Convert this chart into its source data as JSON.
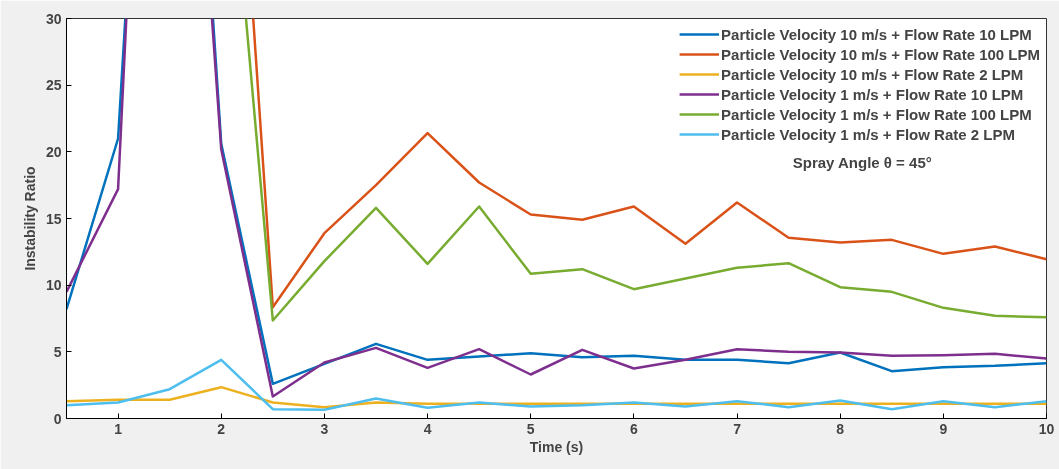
{
  "chart_data": {
    "type": "line",
    "xlabel": "Time (s)",
    "ylabel": "Instability Ratio",
    "xlim": [
      0.5,
      10
    ],
    "ylim": [
      0,
      30
    ],
    "xticks": [
      1,
      2,
      3,
      4,
      5,
      6,
      7,
      8,
      9,
      10
    ],
    "yticks": [
      0,
      5,
      10,
      15,
      20,
      25,
      30
    ],
    "grid": false,
    "legend": "top right",
    "line_style": "solid",
    "marker": "none",
    "annotations": [
      "Spray Angle θ = 45°"
    ],
    "series": [
      {
        "name": "Particle Velocity 10 m/s + Flow Rate 10 LPM",
        "color": "#0072bd",
        "x": [
          0.5,
          1,
          1.07,
          1.5,
          1.92,
          2,
          2.5,
          3,
          3.5,
          4,
          4.5,
          5,
          5.5,
          6,
          6.5,
          7,
          7.5,
          8,
          8.5,
          9,
          9.5,
          10
        ],
        "values": [
          8.2,
          21.0,
          30,
          null,
          30,
          20.6,
          2.6,
          4.1,
          5.6,
          4.4,
          4.65,
          4.9,
          4.6,
          4.7,
          4.4,
          4.4,
          4.15,
          4.95,
          3.55,
          3.85,
          3.95,
          4.15
        ]
      },
      {
        "name": "Particle Velocity 10 m/s + Flow Rate 100 LPM",
        "color": "#d95319",
        "x": [
          2.31,
          2.5,
          3,
          3.5,
          4,
          4.5,
          5,
          5.5,
          6,
          6.5,
          7,
          7.5,
          8,
          8.5,
          9,
          9.5,
          10
        ],
        "values": [
          30,
          8.35,
          13.9,
          17.5,
          21.4,
          17.7,
          15.3,
          14.9,
          15.9,
          13.1,
          16.2,
          13.55,
          13.2,
          13.4,
          12.35,
          12.9,
          11.95
        ]
      },
      {
        "name": "Particle Velocity 10 m/s + Flow Rate 2 LPM",
        "color": "#edb120",
        "x": [
          0.5,
          1,
          1.5,
          2,
          2.5,
          3,
          3.5,
          4,
          4.5,
          5,
          5.5,
          6,
          6.5,
          7,
          7.5,
          8,
          8.5,
          9,
          9.5,
          10
        ],
        "values": [
          1.3,
          1.4,
          1.4,
          2.35,
          1.2,
          0.85,
          1.2,
          1.1,
          1.1,
          1.1,
          1.1,
          1.1,
          1.1,
          1.1,
          1.1,
          1.1,
          1.1,
          1.1,
          1.1,
          1.1
        ]
      },
      {
        "name": "Particle Velocity 1 m/s + Flow Rate 10 LPM",
        "color": "#7e2f8e",
        "x": [
          0.5,
          1,
          1.08,
          1.5,
          1.91,
          2,
          2.5,
          3,
          3.5,
          4,
          4.5,
          5,
          5.5,
          6,
          6.5,
          7,
          7.5,
          8,
          8.5,
          9,
          9.5,
          10
        ],
        "values": [
          9.5,
          17.2,
          30,
          null,
          30,
          20.2,
          1.65,
          4.2,
          5.3,
          3.8,
          5.2,
          3.3,
          5.15,
          3.75,
          4.4,
          5.2,
          5.0,
          4.95,
          4.7,
          4.75,
          4.85,
          4.5
        ]
      },
      {
        "name": "Particle Velocity 1 m/s + Flow Rate 100 LPM",
        "color": "#77ac30",
        "x": [
          2.24,
          2.5,
          3,
          3.5,
          4,
          4.5,
          5,
          5.5,
          6,
          6.5,
          7,
          7.5,
          8,
          8.5,
          9,
          9.5,
          10
        ],
        "values": [
          30,
          7.35,
          11.8,
          15.8,
          11.6,
          15.9,
          10.85,
          11.2,
          9.7,
          10.5,
          11.3,
          11.65,
          9.85,
          9.5,
          8.3,
          7.7,
          7.6
        ]
      },
      {
        "name": "Particle Velocity 1 m/s + Flow Rate 2 LPM",
        "color": "#4dbeee",
        "x": [
          0.5,
          1,
          1.5,
          2,
          2.5,
          3,
          3.5,
          4,
          4.5,
          5,
          5.5,
          6,
          6.5,
          7,
          7.5,
          8,
          8.5,
          9,
          9.5,
          10
        ],
        "values": [
          1.0,
          1.2,
          2.2,
          4.4,
          0.7,
          0.65,
          1.5,
          0.8,
          1.2,
          0.9,
          1.0,
          1.2,
          0.9,
          1.3,
          0.85,
          1.35,
          0.7,
          1.3,
          0.85,
          1.3
        ]
      }
    ]
  }
}
